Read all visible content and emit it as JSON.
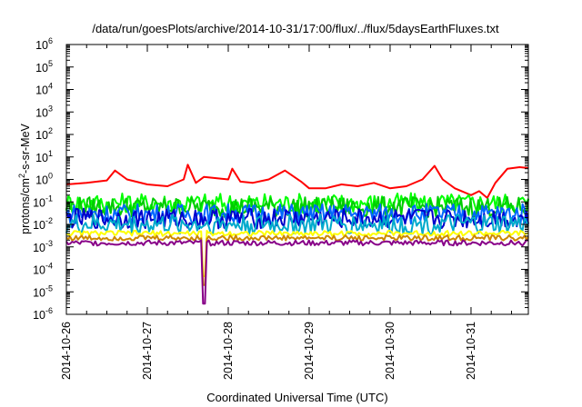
{
  "chart_data": {
    "type": "line",
    "title": "/data/run/goesPlots/archive/2014-10-31/17:00/flux/../flux/5daysEarthFluxes.txt",
    "xlabel": "Coordinated Universal Time (UTC)",
    "ylabel": "protons/cm²-s-sr-MeV",
    "ylabel_parts": {
      "pre": "protons/cm",
      "sup": "2",
      "post": "-s-sr-MeV"
    },
    "yscale": "log",
    "ylim_exponents": [
      -6,
      6
    ],
    "y_tick_base": "10",
    "y_tick_exponents": [
      -6,
      -5,
      -4,
      -3,
      -2,
      -1,
      0,
      1,
      2,
      3,
      4,
      5,
      6
    ],
    "xlim": [
      "2014-10-26",
      "2014-10-31T17:00"
    ],
    "x_tick_labels": [
      "2014-10-26",
      "2014-10-27",
      "2014-10-28",
      "2014-10-29",
      "2014-10-30",
      "2014-10-31"
    ],
    "grid": false,
    "legend": "none",
    "series": [
      {
        "color": "#ff0000",
        "x": [
          0.0,
          0.25,
          0.5,
          0.6,
          0.75,
          1.0,
          1.25,
          1.45,
          1.5,
          1.6,
          1.7,
          2.0,
          2.05,
          2.15,
          2.3,
          2.5,
          2.7,
          2.9,
          3.0,
          3.2,
          3.4,
          3.6,
          3.8,
          4.0,
          4.2,
          4.4,
          4.55,
          4.65,
          4.8,
          5.0,
          5.1,
          5.2,
          5.3,
          5.45,
          5.6,
          5.71
        ],
        "y": [
          0.6,
          0.7,
          0.9,
          2.5,
          1.0,
          0.6,
          0.5,
          1.0,
          4.5,
          0.7,
          1.3,
          1.0,
          3.0,
          0.8,
          0.7,
          1.0,
          2.5,
          0.8,
          0.4,
          0.4,
          0.6,
          0.5,
          0.7,
          0.4,
          0.5,
          1.0,
          4.0,
          1.0,
          0.4,
          0.2,
          0.3,
          0.15,
          0.7,
          3.0,
          3.5,
          3.2
        ]
      },
      {
        "color": "#00ff00",
        "base": 0.09
      },
      {
        "color": "#00cc00",
        "base": 0.06
      },
      {
        "color": "#0066ff",
        "base": 0.03
      },
      {
        "color": "#0000cc",
        "base": 0.018
      },
      {
        "color": "#00aacc",
        "base": 0.01
      },
      {
        "color": "#ffff00",
        "base": 0.004,
        "dip_min": 5e-05
      },
      {
        "color": "#cc8800",
        "base": 0.0025,
        "dip_min": 2e-05
      },
      {
        "color": "#880088",
        "base": 0.0015,
        "dip_min": 3e-06
      }
    ]
  }
}
